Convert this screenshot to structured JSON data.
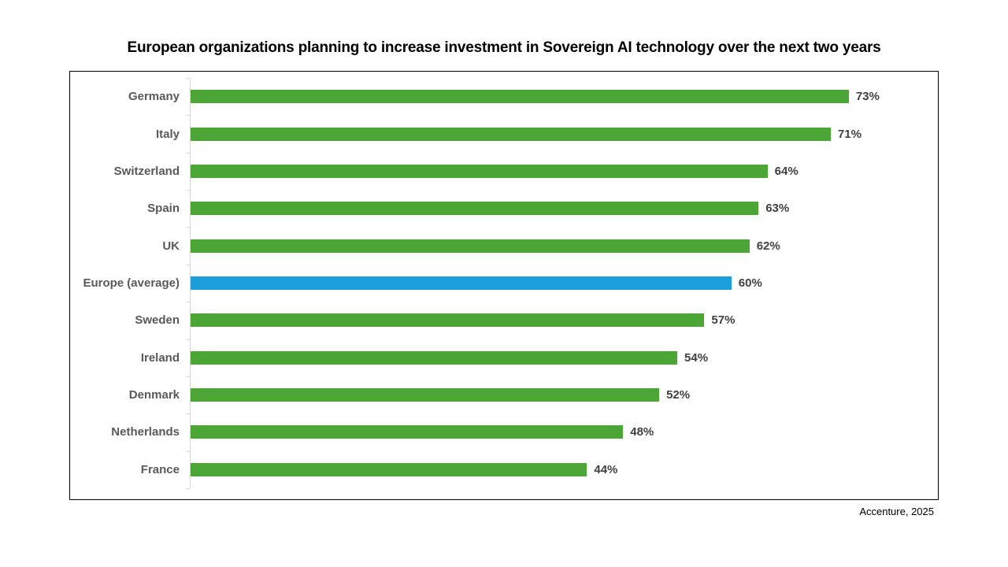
{
  "page": {
    "title": "European organizations planning to increase investment in Sovereign AI technology over the next two years",
    "source": "Accenture, 2025"
  },
  "chart_data": {
    "type": "bar",
    "orientation": "horizontal",
    "title": "European organizations planning to increase investment in Sovereign AI technology over the next two years",
    "categories": [
      "Germany",
      "Italy",
      "Switzerland",
      "Spain",
      "UK",
      "Europe (average)",
      "Sweden",
      "Ireland",
      "Denmark",
      "Netherlands",
      "France"
    ],
    "values": [
      73,
      71,
      64,
      63,
      62,
      60,
      57,
      54,
      52,
      48,
      44
    ],
    "value_labels": [
      "73%",
      "71%",
      "64%",
      "63%",
      "62%",
      "60%",
      "57%",
      "54%",
      "52%",
      "48%",
      "44%"
    ],
    "highlight_category": "Europe (average)",
    "xlabel": "",
    "ylabel": "",
    "xlim": [
      0,
      82
    ],
    "grid": false,
    "legend": false,
    "source": "Accenture, 2025",
    "colors": {
      "bar_default": "#4CA635",
      "bar_highlight": "#1B9DD9",
      "category_text": "#595959",
      "value_text": "#404040",
      "axis_line": "#D6D6D6",
      "frame_border": "#000000"
    }
  }
}
